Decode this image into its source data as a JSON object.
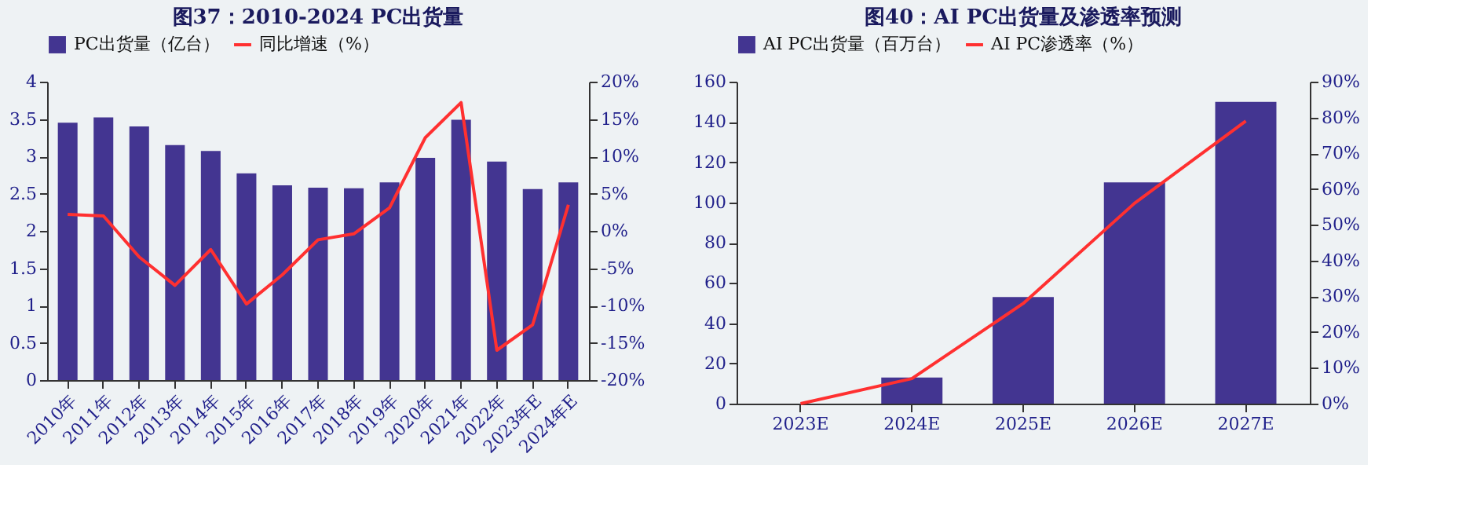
{
  "chart_data": [
    {
      "type": "bar",
      "title": "图37：2010-2024 PC出货量",
      "categories": [
        "2010年",
        "2011年",
        "2012年",
        "2013年",
        "2014年",
        "2015年",
        "2016年",
        "2017年",
        "2018年",
        "2019年",
        "2020年",
        "2021年",
        "2022年",
        "2023年E",
        "2024年E"
      ],
      "series": [
        {
          "name": "PC出货量（亿台）",
          "color": "#433591",
          "values": [
            3.45,
            3.52,
            3.4,
            3.15,
            3.07,
            2.77,
            2.61,
            2.58,
            2.57,
            2.65,
            2.98,
            3.49,
            2.93,
            2.56,
            2.65
          ]
        },
        {
          "name": "同比增速（%）",
          "color": "#ff3030",
          "type": "line",
          "axis": "y2",
          "values": [
            2.2,
            2.0,
            -3.5,
            -7.3,
            -2.5,
            -9.8,
            -5.9,
            -1.2,
            -0.4,
            3.1,
            12.5,
            17.2,
            -16.0,
            -12.6,
            3.5
          ]
        }
      ],
      "ylim": [
        0,
        4
      ],
      "yticks": [
        0,
        0.5,
        1,
        1.5,
        2,
        2.5,
        3,
        3.5,
        4
      ],
      "y2lim": [
        -20,
        20
      ],
      "y2ticks": [
        {
          "value": -20,
          "label": "-20%"
        },
        {
          "value": -15,
          "label": "-15%"
        },
        {
          "value": -10,
          "label": "-10%"
        },
        {
          "value": -5,
          "label": "-5%"
        },
        {
          "value": 0,
          "label": "0%"
        },
        {
          "value": 5,
          "label": "5%"
        },
        {
          "value": 10,
          "label": "10%"
        },
        {
          "value": 15,
          "label": "15%"
        },
        {
          "value": 20,
          "label": "20%"
        }
      ],
      "legend": "top",
      "grid": false
    },
    {
      "type": "bar",
      "title": "图40：AI PC出货量及渗透率预测",
      "categories": [
        "2023E",
        "2024E",
        "2025E",
        "2026E",
        "2027E"
      ],
      "series": [
        {
          "name": "AI PC出货量（百万台）",
          "color": "#433591",
          "values": [
            0,
            13,
            53,
            110,
            150
          ]
        },
        {
          "name": "AI PC渗透率（%）",
          "color": "#ff3030",
          "type": "line",
          "axis": "y2",
          "values": [
            0,
            7,
            28,
            56,
            79
          ]
        }
      ],
      "ylim": [
        0,
        160
      ],
      "yticks": [
        0,
        20,
        40,
        60,
        80,
        100,
        120,
        140,
        160
      ],
      "y2lim": [
        0,
        90
      ],
      "y2ticks": [
        {
          "value": 0,
          "label": "0%"
        },
        {
          "value": 10,
          "label": "10%"
        },
        {
          "value": 20,
          "label": "20%"
        },
        {
          "value": 30,
          "label": "30%"
        },
        {
          "value": 40,
          "label": "40%"
        },
        {
          "value": 50,
          "label": "50%"
        },
        {
          "value": 60,
          "label": "60%"
        },
        {
          "value": 70,
          "label": "70%"
        },
        {
          "value": 80,
          "label": "80%"
        },
        {
          "value": 90,
          "label": "90%"
        }
      ],
      "legend": "top",
      "grid": false
    }
  ]
}
